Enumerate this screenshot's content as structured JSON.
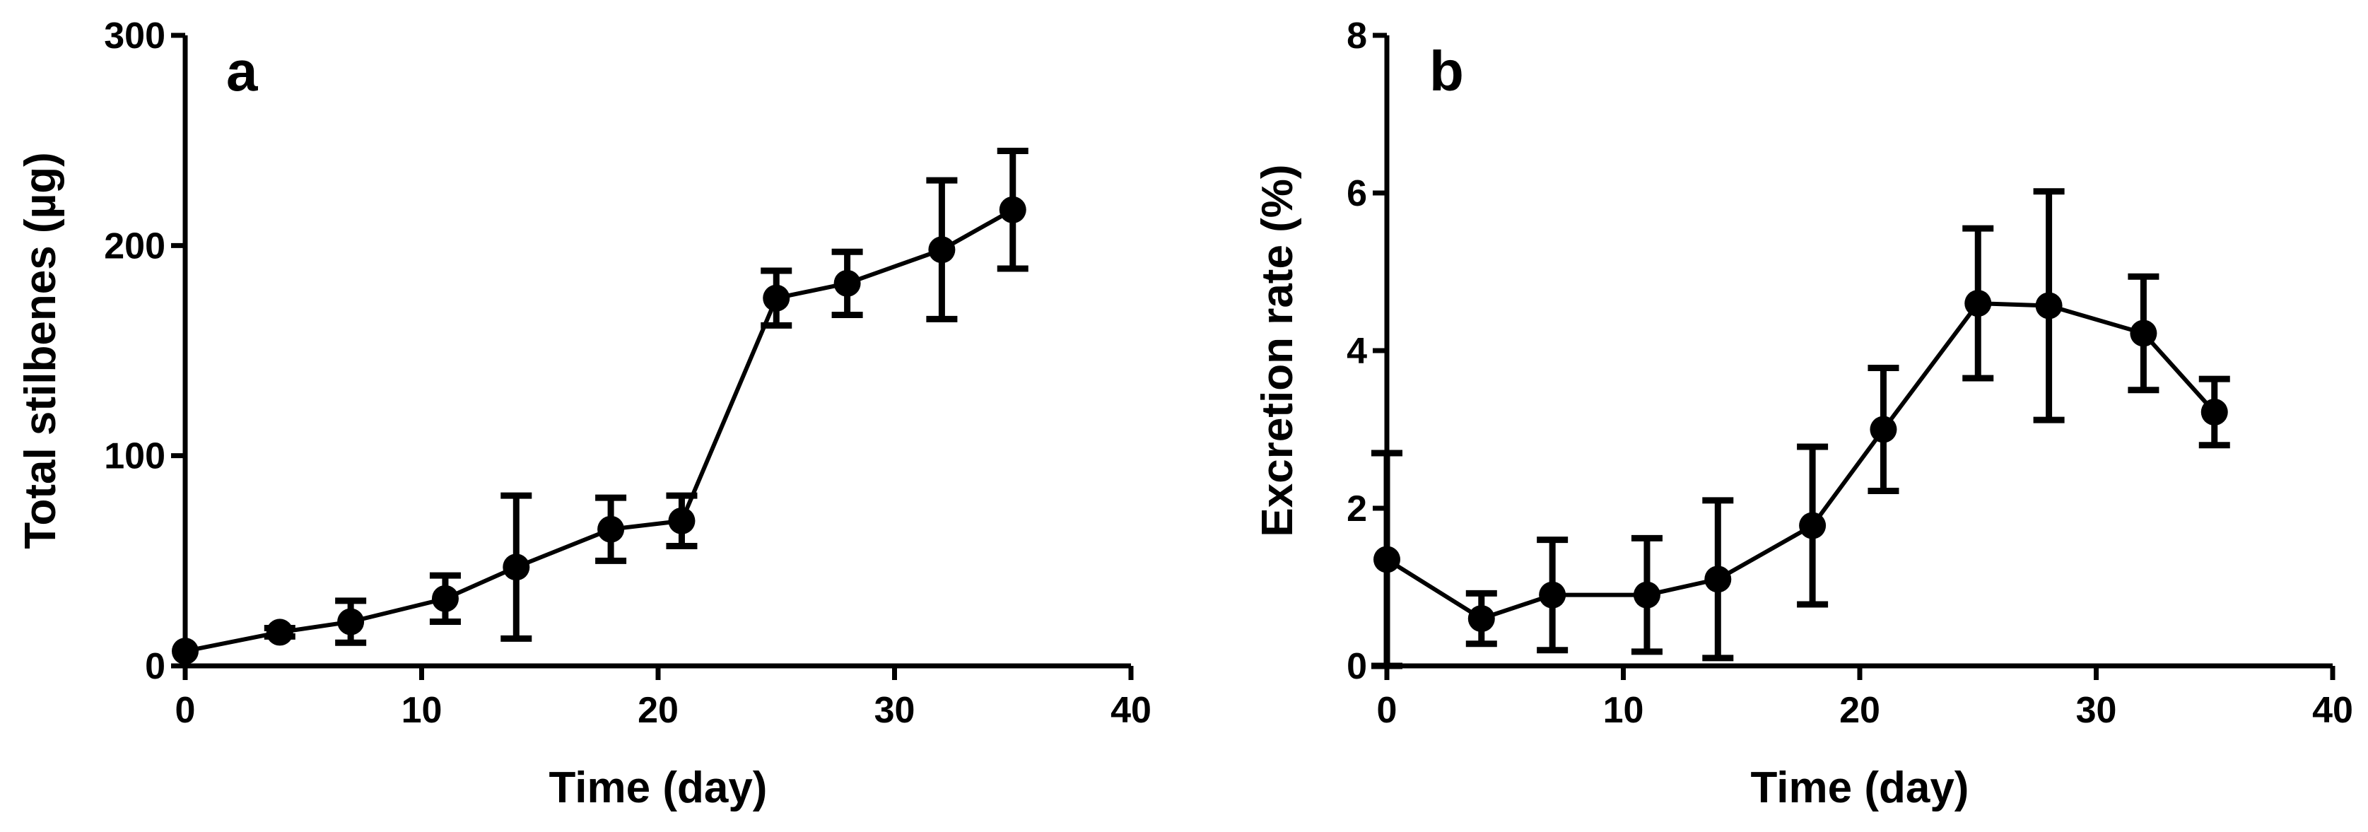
{
  "chart_data": [
    {
      "type": "line",
      "panel": "a",
      "xlabel": "Time (day)",
      "ylabel": "Total stilbenes (µg)",
      "xlim": [
        0,
        40
      ],
      "ylim": [
        0,
        300
      ],
      "xticks": [
        0,
        10,
        20,
        30,
        40
      ],
      "yticks": [
        0,
        100,
        200,
        300
      ],
      "grid": false,
      "series": [
        {
          "name": "Total stilbenes",
          "x": [
            0,
            4,
            7,
            11,
            14,
            18,
            21,
            25,
            28,
            32,
            35
          ],
          "y": [
            7,
            16,
            21,
            32,
            47,
            65,
            69,
            175,
            182,
            198,
            217
          ],
          "err": [
            0,
            2,
            10,
            11,
            34,
            15,
            12,
            13,
            15,
            33,
            28
          ]
        }
      ]
    },
    {
      "type": "line",
      "panel": "b",
      "xlabel": "Time (day)",
      "ylabel": "Excretion rate (%)",
      "xlim": [
        0,
        40
      ],
      "ylim": [
        0,
        8
      ],
      "xticks": [
        0,
        10,
        20,
        30,
        40
      ],
      "yticks": [
        0,
        2,
        4,
        6,
        8
      ],
      "grid": false,
      "series": [
        {
          "name": "Excretion rate",
          "x": [
            0,
            4,
            7,
            11,
            14,
            18,
            21,
            25,
            28,
            32,
            35
          ],
          "y": [
            1.35,
            0.6,
            0.9,
            0.9,
            1.1,
            1.78,
            3.0,
            4.6,
            4.57,
            4.22,
            3.22
          ],
          "err": [
            1.35,
            0.32,
            0.7,
            0.72,
            1.0,
            1.0,
            0.78,
            0.95,
            1.45,
            0.72,
            0.42
          ]
        }
      ]
    }
  ]
}
